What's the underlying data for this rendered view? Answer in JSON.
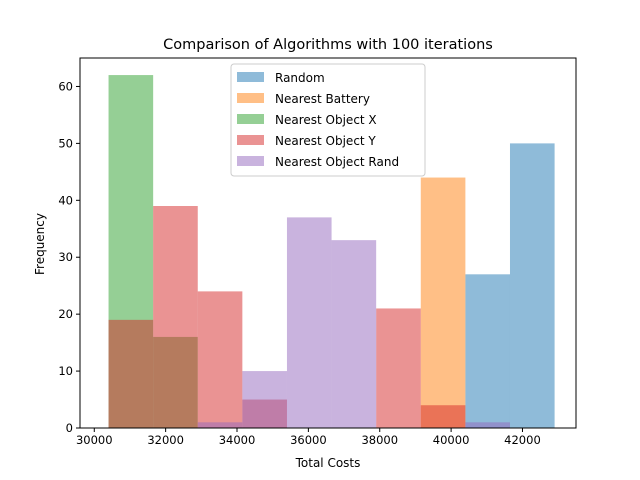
{
  "chart_data": {
    "type": "bar",
    "title": "Comparison of Algorithms with 100 iterations",
    "xlabel": "Total Costs",
    "ylabel": "Frequency",
    "xlim": [
      29600,
      43500
    ],
    "ylim": [
      0,
      65
    ],
    "xticks": [
      30000,
      32000,
      34000,
      36000,
      38000,
      40000,
      42000
    ],
    "xtick_labels": [
      "30000",
      "32000",
      "34000",
      "36000",
      "38000",
      "40000",
      "42000"
    ],
    "yticks": [
      0,
      10,
      20,
      30,
      40,
      50,
      60
    ],
    "ytick_labels": [
      "0",
      "10",
      "20",
      "30",
      "40",
      "50",
      "60"
    ],
    "bin_edges": [
      30400,
      31650,
      32900,
      34150,
      35400,
      36650,
      37900,
      39150,
      40400,
      41650,
      42900
    ],
    "grid": false,
    "legend_position": "top-center",
    "bar_alpha": 0.5,
    "series": [
      {
        "name": "Random",
        "color": "#1f77b4",
        "values": [
          0,
          0,
          0,
          0,
          0,
          0,
          0,
          0,
          27,
          50
        ]
      },
      {
        "name": "Nearest Battery",
        "color": "#ff7f0e",
        "values": [
          0,
          0,
          0,
          0,
          0,
          0,
          0,
          44,
          0,
          0
        ]
      },
      {
        "name": "Nearest Object X",
        "color": "#2ca02c",
        "values": [
          62,
          16,
          0,
          0,
          0,
          0,
          0,
          0,
          0,
          0
        ]
      },
      {
        "name": "Nearest Object Y",
        "color": "#d62728",
        "values": [
          19,
          39,
          24,
          5,
          0,
          0,
          21,
          4,
          0,
          0
        ]
      },
      {
        "name": "Nearest Object Rand",
        "color": "#9467bd",
        "values": [
          0,
          0,
          1,
          10,
          37,
          33,
          0,
          0,
          1,
          0
        ]
      }
    ]
  }
}
